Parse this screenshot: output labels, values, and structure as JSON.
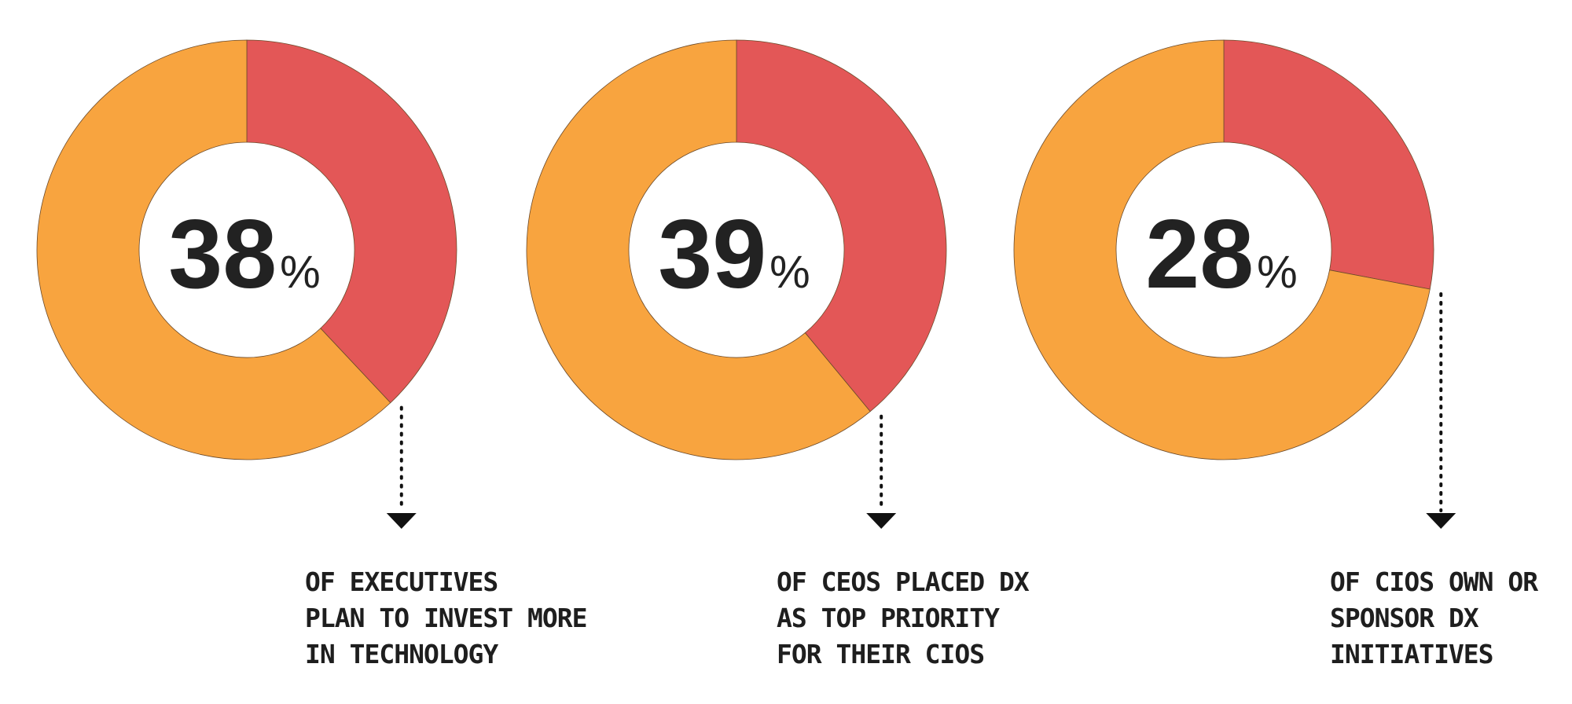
{
  "chart_data": [
    {
      "type": "pie",
      "slices": [
        {
          "value": 38,
          "color": "#e35757"
        },
        {
          "value": 62,
          "color": "#f8a43f"
        }
      ],
      "label": {
        "number": "38",
        "symbol": "%"
      },
      "caption": [
        "OF EXECUTIVES",
        "PLAN TO INVEST MORE",
        "IN TECHNOLOGY"
      ]
    },
    {
      "type": "pie",
      "slices": [
        {
          "value": 39,
          "color": "#e35757"
        },
        {
          "value": 61,
          "color": "#f8a43f"
        }
      ],
      "label": {
        "number": "39",
        "symbol": "%"
      },
      "caption": [
        "OF CEOS PLACED DX",
        "AS TOP PRIORITY",
        "FOR THEIR CIOS"
      ]
    },
    {
      "type": "pie",
      "slices": [
        {
          "value": 28,
          "color": "#e35757"
        },
        {
          "value": 72,
          "color": "#f8a43f"
        }
      ],
      "label": {
        "number": "28",
        "symbol": "%"
      },
      "caption": [
        "OF CIOS OWN OR",
        "SPONSOR DX",
        "INITIATIVES"
      ]
    }
  ],
  "colors": {
    "highlight": "#e35757",
    "remainder": "#f8a43f",
    "text": "#222222"
  }
}
